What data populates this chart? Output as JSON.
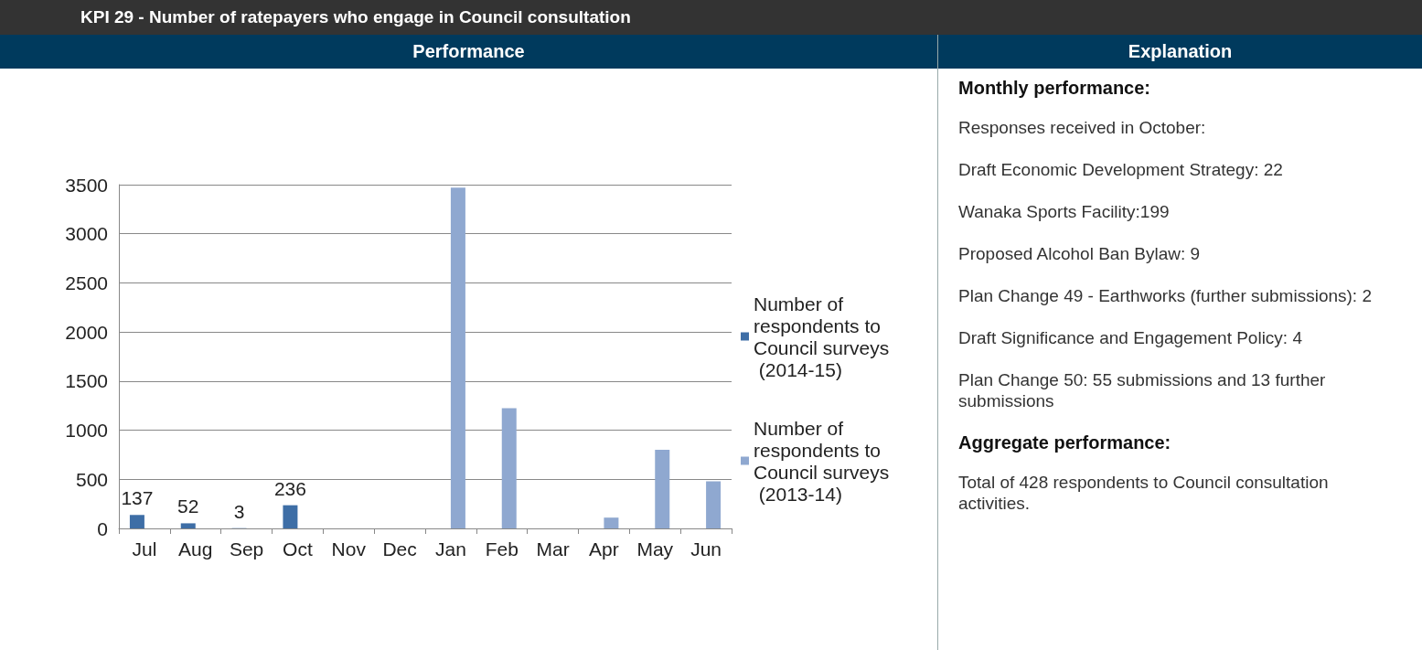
{
  "chart_data": [
    {
      "type": "bar",
      "title": "KPI 29 - Number of ratepayers who engage in Council consultation",
      "subtitle": "Performance",
      "categories": [
        "Jul",
        "Aug",
        "Sep",
        "Oct",
        "Nov",
        "Dec",
        "Jan",
        "Feb",
        "Mar",
        "Apr",
        "May",
        "Jun"
      ],
      "series": [
        {
          "name": "Number of respondents to Council surveys (2014-15)",
          "color": "#3e6ea6",
          "values": [
            137,
            52,
            3,
            236,
            null,
            null,
            null,
            null,
            null,
            null,
            null,
            null
          ],
          "value_labels": [
            "137",
            "52",
            "3",
            "236",
            null,
            null,
            null,
            null,
            null,
            null,
            null,
            null
          ]
        },
        {
          "name": "Number of respondents to Council surveys (2013-14)",
          "color": "#8fa8d0",
          "values": [
            null,
            null,
            null,
            null,
            null,
            null,
            3470,
            1225,
            null,
            110,
            800,
            480
          ]
        }
      ],
      "ylim": [
        0,
        3500
      ],
      "yticks": [
        0,
        500,
        1000,
        1500,
        2000,
        2500,
        3000,
        3500
      ],
      "grid": "y",
      "legend": "right"
    },
    {
      "type": "other",
      "title": "Explanation",
      "annotations": [
        "Monthly performance:",
        "Responses received in October:",
        "Draft Economic Development Strategy: 22",
        "Wanaka Sports Facility:199",
        "Proposed Alcohol Ban Bylaw: 9",
        "Plan Change 49 - Earthworks (further submissions): 2",
        "Draft Significance and Engagement Policy: 4",
        "Plan Change 50: 55 submissions and 13 further submissions",
        "Aggregate performance:",
        "Total of 428 respondents to Council consultation activities."
      ]
    }
  ]
}
